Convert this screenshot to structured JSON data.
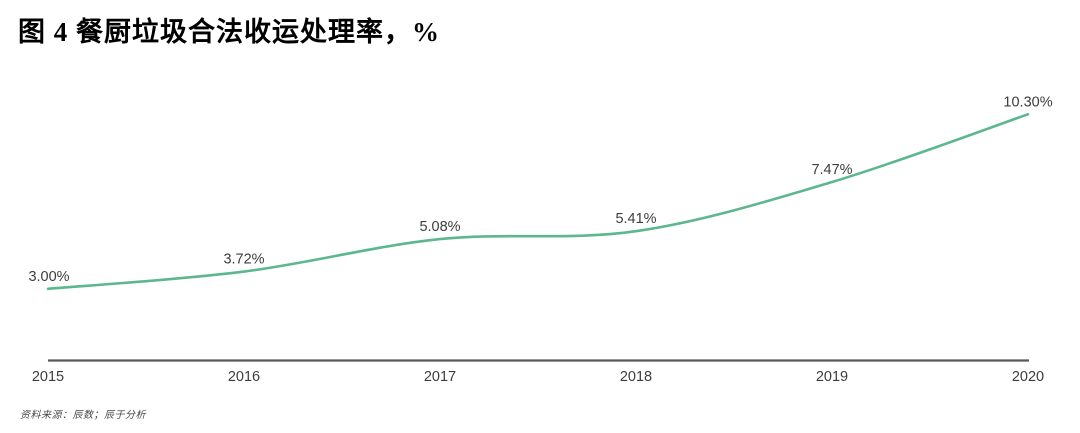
{
  "header": {
    "title": "图 4 餐厨垃圾合法收运处理率，%"
  },
  "footer": {
    "source": "资料来源：辰数；辰于分析"
  },
  "chart_data": {
    "type": "line",
    "title": "图 4 餐厨垃圾合法收运处理率，%",
    "categories": [
      "2015",
      "2016",
      "2017",
      "2018",
      "2019",
      "2020"
    ],
    "values": [
      3.0,
      3.72,
      5.08,
      5.41,
      7.47,
      10.3
    ],
    "point_labels": [
      "3.00%",
      "3.72%",
      "5.08%",
      "5.41%",
      "7.47%",
      "10.30%"
    ],
    "unit": "%",
    "xlabel": "",
    "ylabel": "",
    "ylim": [
      0,
      10.9
    ],
    "smooth": true,
    "grid": false,
    "legend": "none",
    "line_color": "#5cb88c",
    "axis_color": "#58595b",
    "label_color": "#3d3d3d"
  }
}
